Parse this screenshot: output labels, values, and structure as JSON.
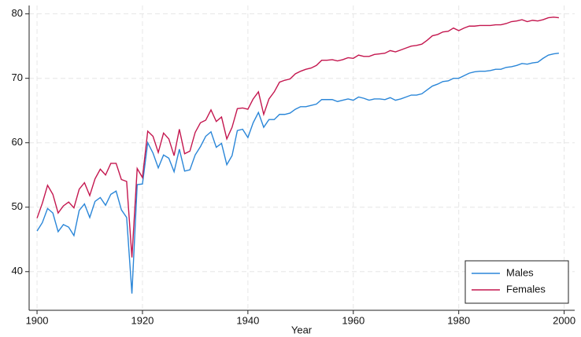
{
  "chart_data": {
    "type": "line",
    "x_label": "Year",
    "x": [
      1900,
      1901,
      1902,
      1903,
      1904,
      1905,
      1906,
      1907,
      1908,
      1909,
      1910,
      1911,
      1912,
      1913,
      1914,
      1915,
      1916,
      1917,
      1918,
      1919,
      1920,
      1921,
      1922,
      1923,
      1924,
      1925,
      1926,
      1927,
      1928,
      1929,
      1930,
      1931,
      1932,
      1933,
      1934,
      1935,
      1936,
      1937,
      1938,
      1939,
      1940,
      1941,
      1942,
      1943,
      1944,
      1945,
      1946,
      1947,
      1948,
      1949,
      1950,
      1951,
      1952,
      1953,
      1954,
      1955,
      1956,
      1957,
      1958,
      1959,
      1960,
      1961,
      1962,
      1963,
      1964,
      1965,
      1966,
      1967,
      1968,
      1969,
      1970,
      1971,
      1972,
      1973,
      1974,
      1975,
      1976,
      1977,
      1978,
      1979,
      1980,
      1981,
      1982,
      1983,
      1984,
      1985,
      1986,
      1987,
      1988,
      1989,
      1990,
      1991,
      1992,
      1993,
      1994,
      1995,
      1996,
      1997,
      1998,
      1999
    ],
    "series": [
      {
        "name": "Males",
        "color": "#2a86d8",
        "values": [
          46.3,
          47.6,
          49.8,
          49.1,
          46.2,
          47.3,
          46.9,
          45.6,
          49.5,
          50.5,
          48.4,
          50.9,
          51.5,
          50.3,
          52.0,
          52.5,
          49.6,
          48.4,
          36.6,
          53.5,
          53.6,
          60.0,
          58.4,
          56.1,
          58.1,
          57.6,
          55.5,
          59.0,
          55.6,
          55.8,
          58.1,
          59.4,
          61.0,
          61.7,
          59.3,
          59.9,
          56.6,
          58.0,
          61.9,
          62.1,
          60.8,
          63.1,
          64.7,
          62.4,
          63.6,
          63.6,
          64.4,
          64.4,
          64.6,
          65.2,
          65.6,
          65.6,
          65.8,
          66.0,
          66.7,
          66.7,
          66.7,
          66.4,
          66.6,
          66.8,
          66.6,
          67.1,
          66.9,
          66.6,
          66.8,
          66.8,
          66.7,
          67.0,
          66.6,
          66.8,
          67.1,
          67.4,
          67.4,
          67.6,
          68.2,
          68.8,
          69.1,
          69.5,
          69.6,
          70.0,
          70.0,
          70.4,
          70.8,
          71.0,
          71.1,
          71.1,
          71.2,
          71.4,
          71.4,
          71.7,
          71.8,
          72.0,
          72.3,
          72.2,
          72.4,
          72.5,
          73.1,
          73.6,
          73.8,
          73.9
        ]
      },
      {
        "name": "Females",
        "color": "#c4174f",
        "values": [
          48.3,
          50.6,
          53.4,
          52.0,
          49.1,
          50.2,
          50.8,
          49.9,
          52.8,
          53.8,
          51.8,
          54.4,
          55.9,
          55.0,
          56.8,
          56.8,
          54.3,
          54.0,
          42.2,
          56.0,
          54.6,
          61.8,
          61.0,
          58.5,
          61.5,
          60.6,
          58.0,
          62.1,
          58.3,
          58.7,
          61.6,
          63.1,
          63.5,
          65.1,
          63.3,
          64.0,
          60.6,
          62.4,
          65.3,
          65.4,
          65.2,
          66.8,
          67.9,
          64.4,
          66.8,
          67.9,
          69.4,
          69.7,
          69.9,
          70.7,
          71.1,
          71.4,
          71.6,
          72.0,
          72.8,
          72.8,
          72.9,
          72.7,
          72.9,
          73.2,
          73.1,
          73.6,
          73.4,
          73.4,
          73.7,
          73.8,
          73.9,
          74.3,
          74.1,
          74.4,
          74.7,
          75.0,
          75.1,
          75.3,
          75.9,
          76.6,
          76.8,
          77.2,
          77.3,
          77.8,
          77.4,
          77.8,
          78.1,
          78.1,
          78.2,
          78.2,
          78.2,
          78.3,
          78.3,
          78.5,
          78.8,
          78.9,
          79.1,
          78.8,
          79.0,
          78.9,
          79.1,
          79.4,
          79.5,
          79.4
        ]
      }
    ],
    "xlim": [
      1898.5,
      2002
    ],
    "xticks": [
      1900,
      1920,
      1940,
      1960,
      1980,
      2000
    ],
    "ylim": [
      34,
      81.3
    ],
    "yticks": [
      40,
      50,
      60,
      70,
      80
    ],
    "grid": true,
    "legend": "lower right"
  }
}
